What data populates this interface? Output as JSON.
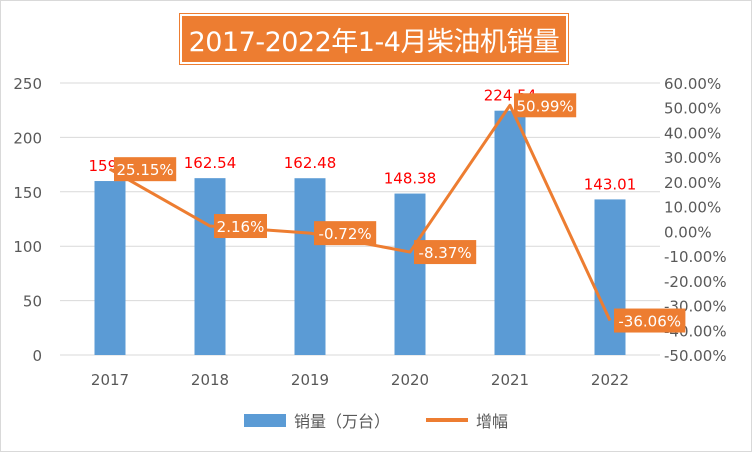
{
  "chart_data": {
    "type": "bar",
    "title": "2017-2022年1-4月柴油机销量",
    "categories": [
      "2017",
      "2018",
      "2019",
      "2020",
      "2021",
      "2022"
    ],
    "series": [
      {
        "name": "销量（万台）",
        "type": "bar",
        "axis": "left",
        "color": "#5b9bd5",
        "values": [
          159.9,
          162.54,
          162.48,
          148.38,
          224.54,
          143.01
        ],
        "labels": [
          "159.9",
          "162.54",
          "162.48",
          "148.38",
          "224.54",
          "143.01"
        ],
        "label_color": "#ff0000"
      },
      {
        "name": "增幅",
        "type": "line",
        "axis": "right",
        "color": "#ed7d31",
        "values": [
          25.15,
          2.16,
          -0.72,
          -8.37,
          50.99,
          -36.06
        ],
        "labels": [
          "25.15%",
          "2.16%",
          "-0.72%",
          "-8.37%",
          "50.99%",
          "-36.06%"
        ],
        "label_bg": "#ed7d31",
        "label_color": "#ffffff"
      }
    ],
    "y_left": {
      "ylim": [
        0,
        250
      ],
      "ticks": [
        0,
        50,
        100,
        150,
        200,
        250
      ],
      "tick_labels": [
        "0",
        "50",
        "100",
        "150",
        "200",
        "250"
      ]
    },
    "y_right": {
      "ylim": [
        -50,
        60
      ],
      "ticks": [
        -50,
        -40,
        -30,
        -20,
        -10,
        0,
        10,
        20,
        30,
        40,
        50,
        60
      ],
      "tick_labels": [
        "-50.00%",
        "-40.00%",
        "-30.00%",
        "-20.00%",
        "-10.00%",
        "0.00%",
        "10.00%",
        "20.00%",
        "30.00%",
        "40.00%",
        "50.00%",
        "60.00%"
      ]
    },
    "grid": true,
    "legend": "bottom",
    "title_bg": "#ed7d31"
  }
}
